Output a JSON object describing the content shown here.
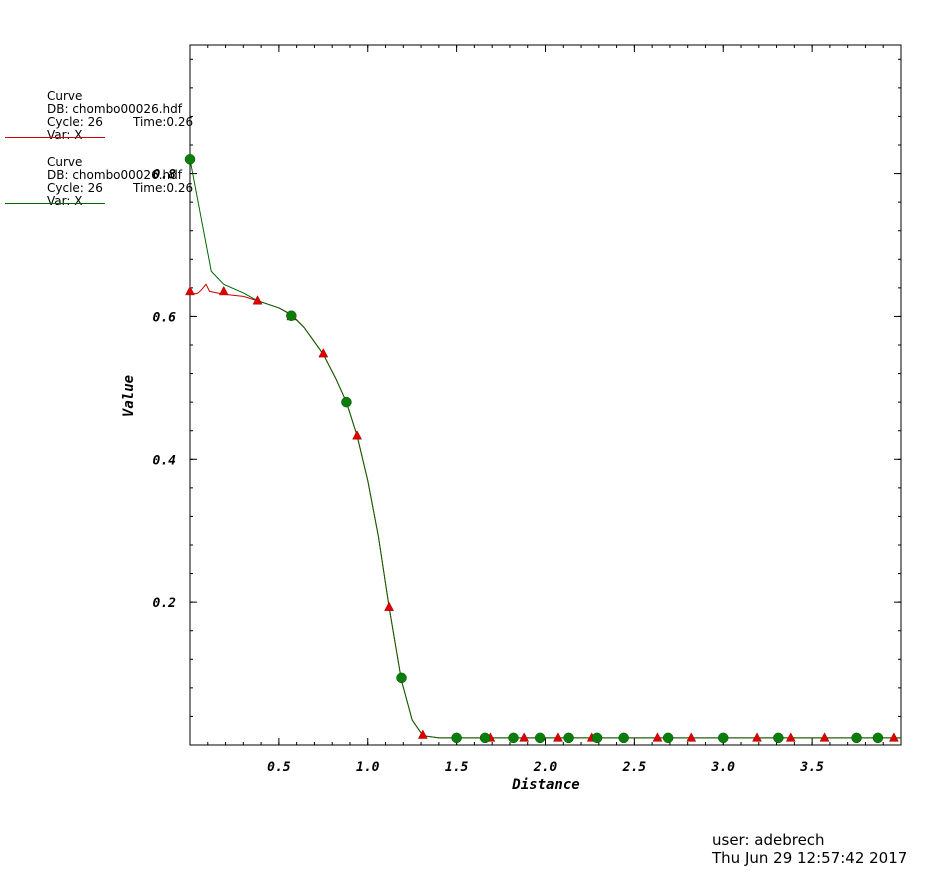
{
  "chart_data": {
    "type": "line",
    "xlabel": "Distance",
    "ylabel": "Value",
    "xlim": [
      0.0,
      4.0
    ],
    "ylim": [
      0.0,
      0.98
    ],
    "x_ticks": [
      "0.5",
      "1.0",
      "1.5",
      "2.0",
      "2.5",
      "3.0",
      "3.5"
    ],
    "x_tick_values": [
      0.5,
      1.0,
      1.5,
      2.0,
      2.5,
      3.0,
      3.5
    ],
    "y_ticks": [
      "0.2",
      "0.4",
      "0.6",
      "0.8"
    ],
    "y_tick_values": [
      0.2,
      0.4,
      0.6,
      0.8
    ],
    "grid": false,
    "legend_position": "top-left",
    "series": [
      {
        "color": "#cc0000",
        "marker": "triangle",
        "line": [
          [
            0.0,
            0.632
          ],
          [
            0.04,
            0.632
          ],
          [
            0.06,
            0.636
          ],
          [
            0.09,
            0.645
          ],
          [
            0.11,
            0.635
          ],
          [
            0.19,
            0.631
          ],
          [
            0.3,
            0.628
          ],
          [
            0.38,
            0.622
          ],
          [
            0.5,
            0.612
          ],
          [
            0.57,
            0.603
          ],
          [
            0.64,
            0.585
          ],
          [
            0.75,
            0.547
          ],
          [
            0.82,
            0.513
          ],
          [
            0.88,
            0.48
          ],
          [
            0.94,
            0.433
          ],
          [
            1.0,
            0.37
          ],
          [
            1.06,
            0.292
          ],
          [
            1.12,
            0.193
          ],
          [
            1.19,
            0.09
          ],
          [
            1.25,
            0.035
          ],
          [
            1.31,
            0.013
          ],
          [
            1.4,
            0.01
          ],
          [
            1.5,
            0.01
          ],
          [
            4.0,
            0.01
          ]
        ],
        "markers": [
          [
            0.0,
            0.635
          ],
          [
            0.19,
            0.635
          ],
          [
            0.38,
            0.622
          ],
          [
            0.57,
            0.6
          ],
          [
            0.75,
            0.548
          ],
          [
            0.94,
            0.433
          ],
          [
            1.12,
            0.193
          ],
          [
            1.31,
            0.014
          ],
          [
            1.69,
            0.01
          ],
          [
            1.88,
            0.01
          ],
          [
            2.07,
            0.01
          ],
          [
            2.26,
            0.01
          ],
          [
            2.63,
            0.01
          ],
          [
            2.82,
            0.01
          ],
          [
            3.19,
            0.01
          ],
          [
            3.38,
            0.01
          ],
          [
            3.57,
            0.01
          ],
          [
            3.96,
            0.01
          ]
        ]
      },
      {
        "color": "#006600",
        "marker": "circle",
        "line": [
          [
            0.0,
            0.82
          ],
          [
            0.12,
            0.663
          ],
          [
            0.19,
            0.645
          ],
          [
            0.3,
            0.633
          ],
          [
            0.38,
            0.622
          ],
          [
            0.5,
            0.612
          ],
          [
            0.57,
            0.602
          ],
          [
            0.64,
            0.585
          ],
          [
            0.75,
            0.547
          ],
          [
            0.82,
            0.513
          ],
          [
            0.88,
            0.48
          ],
          [
            0.94,
            0.433
          ],
          [
            1.0,
            0.37
          ],
          [
            1.06,
            0.292
          ],
          [
            1.12,
            0.193
          ],
          [
            1.19,
            0.09
          ],
          [
            1.25,
            0.035
          ],
          [
            1.31,
            0.013
          ],
          [
            1.4,
            0.01
          ],
          [
            1.5,
            0.01
          ],
          [
            4.0,
            0.01
          ]
        ],
        "markers": [
          [
            0.0,
            0.82
          ],
          [
            0.57,
            0.601
          ],
          [
            0.88,
            0.48
          ],
          [
            1.19,
            0.094
          ],
          [
            1.5,
            0.01
          ],
          [
            1.66,
            0.01
          ],
          [
            1.82,
            0.01
          ],
          [
            1.97,
            0.01
          ],
          [
            2.13,
            0.01
          ],
          [
            2.29,
            0.01
          ],
          [
            2.44,
            0.01
          ],
          [
            2.69,
            0.01
          ],
          [
            3.0,
            0.01
          ],
          [
            3.31,
            0.01
          ],
          [
            3.75,
            0.01
          ],
          [
            3.87,
            0.01
          ]
        ]
      }
    ]
  },
  "legend": [
    {
      "title": "Curve",
      "db": "DB: chombo00026.hdf",
      "cycle": "Cycle: 26",
      "time": "Time:0.26",
      "var": "Var: X",
      "color": "#cc0000"
    },
    {
      "title": "Curve",
      "db": "DB: chombo00026.hdf",
      "cycle": "Cycle: 26",
      "time": "Time:0.26",
      "var": "Var: X",
      "color": "#006600"
    }
  ],
  "footer": {
    "user": "user: adebrech",
    "timestamp": "Thu Jun 29 12:57:42 2017"
  }
}
